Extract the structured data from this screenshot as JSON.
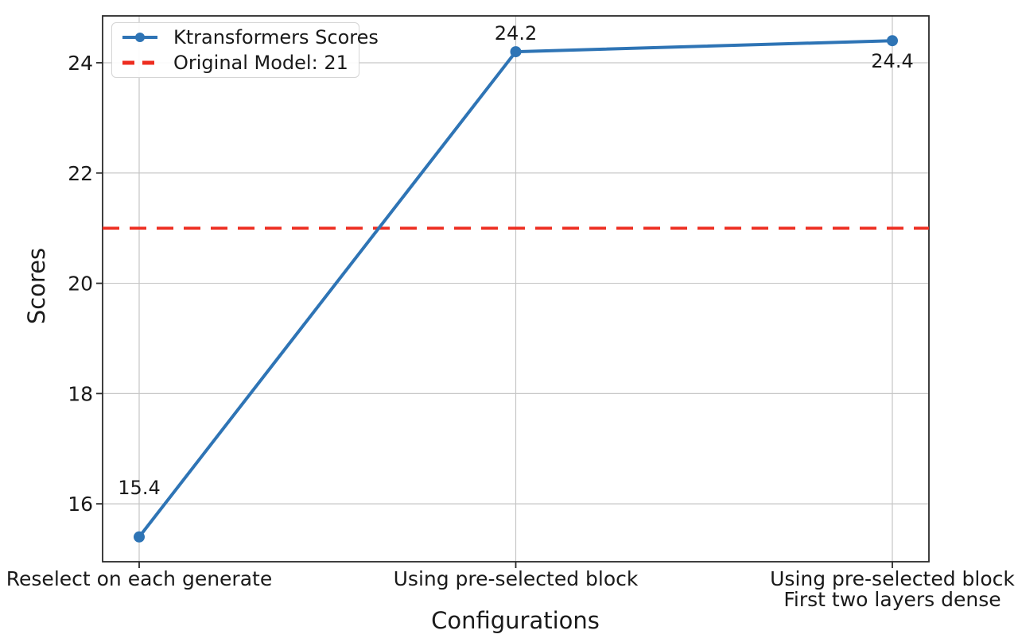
{
  "chart_data": {
    "type": "line",
    "xlabel": "Configurations",
    "ylabel": "Scores",
    "categories": [
      "Reselect on each generate",
      "Using pre-selected block",
      "Using pre-selected block\nFirst two layers dense"
    ],
    "series": [
      {
        "name": "Ktransformers Scores",
        "values": [
          15.4,
          24.2,
          24.4
        ],
        "color": "#2e74b5",
        "marker": "circle",
        "style": "solid"
      }
    ],
    "point_labels": [
      "15.4",
      "24.2",
      "24.4"
    ],
    "reference_line": {
      "label": "Original Model: 21",
      "value": 21,
      "color": "#ed2d20",
      "style": "dashed"
    },
    "yticks": [
      16,
      18,
      20,
      22,
      24
    ],
    "ylim": [
      14.95,
      24.85
    ],
    "grid": true,
    "grid_color": "#c6c6c6",
    "axis_color": "#2a2a2a",
    "text_color": "#1a1a1a",
    "legend_position": "upper left"
  },
  "legend": {
    "entries": [
      {
        "label": "Ktransformers Scores",
        "type": "line-with-marker",
        "color": "#2e74b5"
      },
      {
        "label": "Original Model: 21",
        "type": "dashed-line",
        "color": "#ed2d20"
      }
    ]
  }
}
